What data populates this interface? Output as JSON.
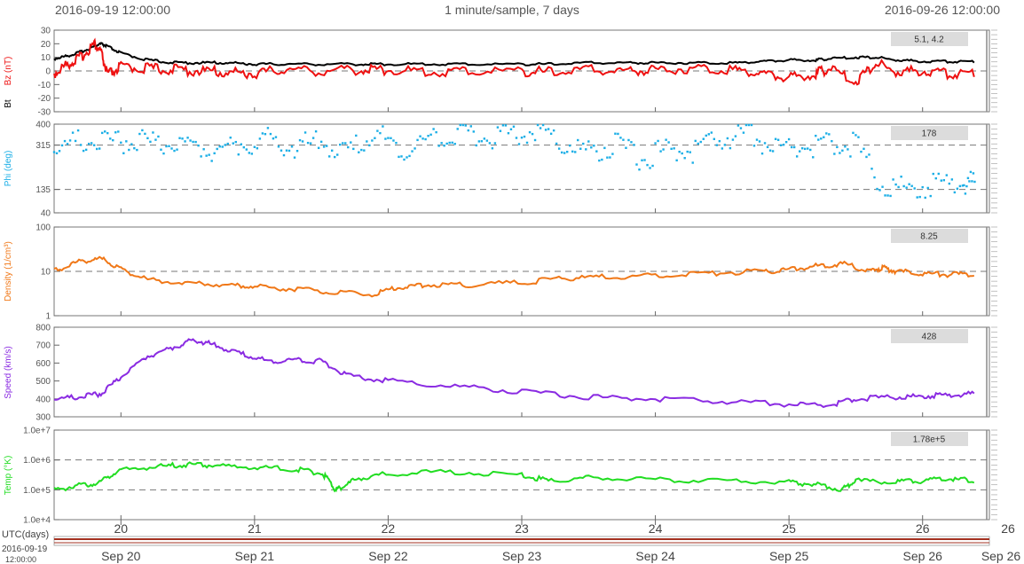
{
  "header": {
    "start_time": "2016-09-19 12:00:00",
    "resolution": "1 minute/sample, 7 days",
    "end_time": "2016-09-26 12:00:00"
  },
  "time_axis": {
    "label": "UTC(days)",
    "start_label": "2016-09-19",
    "start_label_time": "12:00:00"
  },
  "colors": {
    "bz": "#ee1111",
    "bt": "#000000",
    "phi": "#1aaee6",
    "density": "#f07818",
    "speed": "#8a2be2",
    "temp": "#22dd22",
    "bottom_bar": "#a33020",
    "grid": "#777777",
    "value_box": "#dcdcdc"
  },
  "chart_data": [
    {
      "type": "line",
      "panel": "magnetic-field",
      "ylabel": "Bz (nT)",
      "ylabel2": "Bt",
      "ylim": [
        -30,
        30
      ],
      "yticks": [
        "30",
        "20",
        "10",
        "0",
        "-10",
        "-20",
        "-30"
      ],
      "ytick_values": [
        30,
        20,
        10,
        0,
        -10,
        -20,
        -30
      ],
      "dashed_lines": [
        0
      ],
      "value_readout": "5.1, 4.2",
      "x": [
        19.5,
        19.6,
        19.7,
        19.8,
        19.85,
        19.9,
        20.0,
        20.2,
        20.4,
        20.6,
        20.8,
        21.0,
        21.2,
        21.5,
        21.8,
        22.0,
        22.3,
        22.6,
        23.0,
        23.2,
        23.5,
        23.8,
        24.0,
        24.3,
        24.6,
        24.8,
        25.0,
        25.2,
        25.3,
        25.5,
        25.65,
        25.8,
        26.0,
        26.2,
        26.4
      ],
      "series": [
        {
          "name": "Bt",
          "values": [
            9,
            11,
            14,
            18,
            20,
            18,
            13,
            8,
            6,
            6,
            6,
            5,
            5,
            5,
            5,
            5,
            5,
            5,
            5,
            5,
            6,
            6,
            6,
            6,
            6,
            7,
            8,
            8,
            9,
            10,
            10,
            8,
            7,
            7,
            7
          ]
        },
        {
          "name": "Bz",
          "values": [
            -2,
            5,
            10,
            20,
            14,
            -3,
            3,
            2,
            1,
            0,
            -1,
            -2,
            1,
            0,
            1,
            1,
            -1,
            0,
            0,
            -1,
            1,
            0,
            1,
            2,
            1,
            -2,
            -5,
            -2,
            2,
            -8,
            6,
            -1,
            0,
            -2,
            -1
          ]
        }
      ]
    },
    {
      "type": "scatter",
      "panel": "phi",
      "ylabel": "Phi (deg)",
      "ylim": [
        40,
        400
      ],
      "yticks": [
        "400",
        "315",
        "135",
        "40"
      ],
      "ytick_values": [
        400,
        315,
        135,
        40
      ],
      "dashed_lines": [
        315,
        135
      ],
      "value_readout": "178",
      "x": [
        19.5,
        19.7,
        19.9,
        20.1,
        20.3,
        20.5,
        20.7,
        20.9,
        21.1,
        21.3,
        21.5,
        21.7,
        21.9,
        22.1,
        22.3,
        22.5,
        22.7,
        22.9,
        23.1,
        23.3,
        23.5,
        23.7,
        23.9,
        24.1,
        24.3,
        24.5,
        24.7,
        24.9,
        25.1,
        25.3,
        25.5,
        25.7,
        25.9,
        26.1,
        26.3,
        26.4
      ],
      "values": [
        300,
        330,
        320,
        340,
        315,
        310,
        300,
        320,
        335,
        310,
        330,
        280,
        360,
        300,
        340,
        370,
        350,
        355,
        375,
        330,
        280,
        320,
        260,
        300,
        290,
        340,
        360,
        300,
        310,
        320,
        315,
        150,
        140,
        150,
        165,
        160
      ]
    },
    {
      "type": "line",
      "panel": "density",
      "ylabel": "Density (1/cm³)",
      "ylim": [
        1,
        100
      ],
      "yscale": "log",
      "yticks": [
        "100",
        "10",
        "1"
      ],
      "ytick_values": [
        100,
        10,
        1
      ],
      "dashed_lines": [
        10
      ],
      "value_readout": "8.25",
      "x": [
        19.5,
        19.7,
        19.85,
        20.0,
        20.2,
        20.5,
        20.8,
        21.0,
        21.3,
        21.6,
        21.9,
        22.1,
        22.3,
        22.6,
        23.0,
        23.3,
        23.6,
        24.0,
        24.4,
        24.8,
        25.0,
        25.2,
        25.4,
        25.6,
        25.7,
        25.8,
        26.0,
        26.2,
        26.4
      ],
      "values": [
        10,
        17,
        19,
        11,
        6.5,
        5.5,
        5,
        4.5,
        4,
        3.3,
        3,
        4.5,
        5,
        5,
        5.5,
        7,
        7.5,
        8,
        9,
        10,
        11,
        13,
        15,
        10,
        12,
        10,
        9,
        8.5,
        8.5
      ]
    },
    {
      "type": "line",
      "panel": "speed",
      "ylabel": "Speed (km/s)",
      "ylim": [
        300,
        800
      ],
      "yticks": [
        "800",
        "700",
        "600",
        "500",
        "400",
        "300"
      ],
      "ytick_values": [
        800,
        700,
        600,
        500,
        400,
        300
      ],
      "value_readout": "428",
      "x": [
        19.5,
        19.7,
        19.85,
        20.0,
        20.2,
        20.4,
        20.55,
        20.7,
        20.9,
        21.1,
        21.3,
        21.5,
        21.7,
        22.0,
        22.5,
        23.0,
        23.5,
        24.0,
        24.5,
        25.0,
        25.3,
        25.5,
        25.8,
        26.0,
        26.2,
        26.4
      ],
      "values": [
        400,
        410,
        430,
        520,
        640,
        690,
        730,
        700,
        650,
        610,
        620,
        610,
        530,
        500,
        470,
        440,
        410,
        400,
        385,
        370,
        365,
        400,
        410,
        415,
        420,
        430
      ]
    },
    {
      "type": "line",
      "panel": "temperature",
      "ylabel": "Temp (°K)",
      "ylim": [
        10000,
        10000000
      ],
      "yscale": "log",
      "yticks": [
        "1.0e+7",
        "1.0e+6",
        "1.0e+5",
        "1.0e+4"
      ],
      "ytick_values": [
        10000000,
        1000000,
        100000,
        10000
      ],
      "dashed_lines": [
        1000000,
        100000
      ],
      "value_readout": "1.78e+5",
      "x": [
        19.5,
        19.7,
        19.85,
        20.0,
        20.3,
        20.5,
        20.7,
        21.0,
        21.3,
        21.5,
        21.6,
        21.65,
        21.8,
        22.0,
        22.5,
        23.0,
        23.2,
        23.5,
        24.0,
        24.5,
        25.0,
        25.2,
        25.4,
        25.5,
        25.8,
        26.0,
        26.2,
        26.4
      ],
      "values": [
        100000,
        140000,
        180000,
        450000,
        600000,
        700000,
        650000,
        550000,
        500000,
        350000,
        100000,
        120000,
        250000,
        350000,
        400000,
        300000,
        200000,
        250000,
        220000,
        200000,
        180000,
        150000,
        100000,
        200000,
        180000,
        200000,
        230000,
        200000
      ]
    }
  ],
  "x_axis": {
    "domain": [
      19.5,
      26.5
    ],
    "day_ticks": [
      20,
      21,
      22,
      23,
      24,
      25,
      26
    ],
    "day_labels": [
      "20",
      "21",
      "22",
      "23",
      "24",
      "25",
      "26"
    ],
    "date_labels": [
      "Sep 20",
      "Sep 21",
      "Sep 22",
      "Sep 23",
      "Sep 24",
      "Sep 25",
      "Sep 26",
      "Sep 26"
    ]
  }
}
